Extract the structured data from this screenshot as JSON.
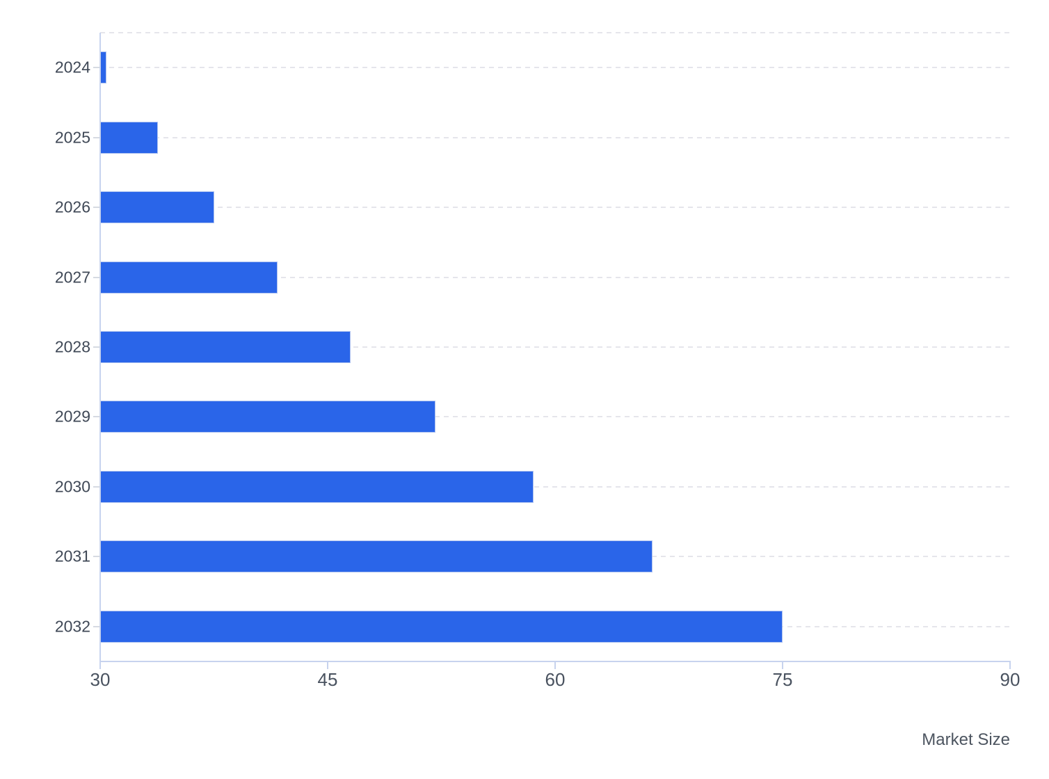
{
  "chart_data": {
    "type": "bar",
    "orientation": "horizontal",
    "title": "",
    "xlabel": "Market Size",
    "ylabel": "",
    "categories": [
      "2024",
      "2025",
      "2026",
      "2027",
      "2028",
      "2029",
      "2030",
      "2031",
      "2032"
    ],
    "values": [
      30.4,
      33.8,
      37.5,
      41.7,
      46.5,
      52.1,
      58.6,
      66.4,
      75.0
    ],
    "xlim": [
      30,
      90
    ],
    "xticks": [
      30,
      45,
      60,
      75,
      90
    ],
    "grid": "horizontal dashed gridlines at each category row center and at top boundary",
    "legend": "none",
    "colors": {
      "bar": "#2a65e9",
      "bar_border": "#c5d2f0",
      "axis_line": "#c7d3ee",
      "gridline": "#e5e5eb",
      "category_label_color": "#3f4856",
      "tick_label_color": "#49525f",
      "xlabel_color": "#4d5560",
      "background": "#ffffff"
    }
  }
}
